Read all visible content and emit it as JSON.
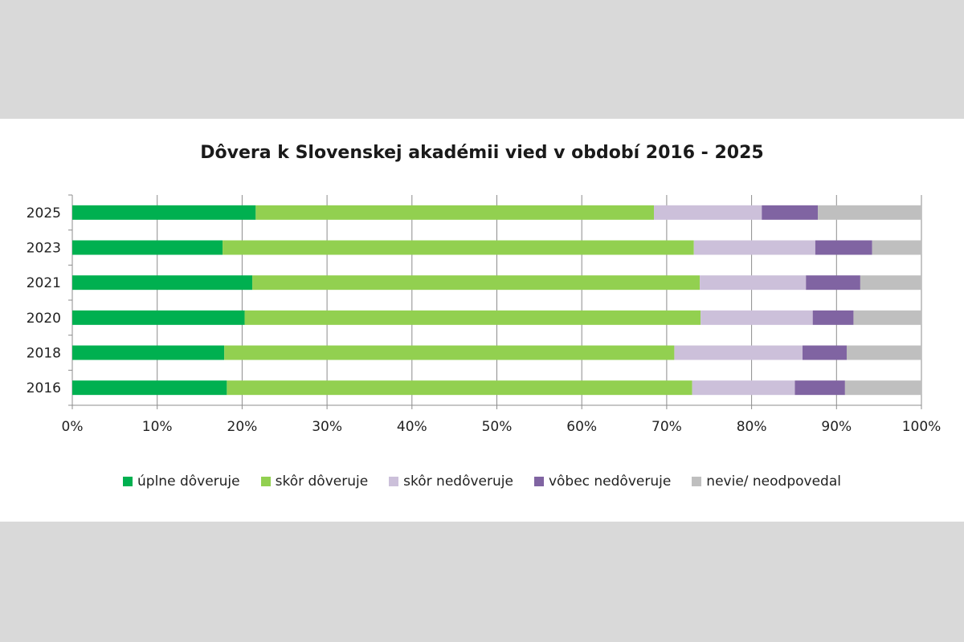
{
  "chart_data": {
    "type": "bar",
    "orientation": "horizontal",
    "stacked": "percent",
    "title": "Dôvera k Slovenskej akadémii vied v období 2016 - 2025",
    "categories": [
      "2025",
      "2023",
      "2021",
      "2020",
      "2018",
      "2016"
    ],
    "x_ticks": [
      "0%",
      "10%",
      "20%",
      "30%",
      "40%",
      "50%",
      "60%",
      "70%",
      "80%",
      "90%",
      "100%"
    ],
    "xlim": [
      0,
      100
    ],
    "grid": true,
    "legend_position": "bottom",
    "series": [
      {
        "name": "úplne dôveruje",
        "color": "#00b050",
        "values": [
          21.6,
          17.7,
          21.2,
          20.3,
          17.9,
          18.2
        ]
      },
      {
        "name": "skôr dôveruje",
        "color": "#92d050",
        "values": [
          46.9,
          55.5,
          52.7,
          53.7,
          53.0,
          54.8
        ]
      },
      {
        "name": "skôr nedôveruje",
        "color": "#ccc0da",
        "values": [
          12.7,
          14.3,
          12.5,
          13.2,
          15.1,
          12.1
        ]
      },
      {
        "name": "vôbec nedôveruje",
        "color": "#8064a2",
        "values": [
          6.6,
          6.7,
          6.4,
          4.8,
          5.2,
          5.9
        ]
      },
      {
        "name": "nevie/ neodpovedal",
        "color": "#bfbfbf",
        "values": [
          12.2,
          5.8,
          7.2,
          8.0,
          8.8,
          9.0
        ]
      }
    ]
  }
}
